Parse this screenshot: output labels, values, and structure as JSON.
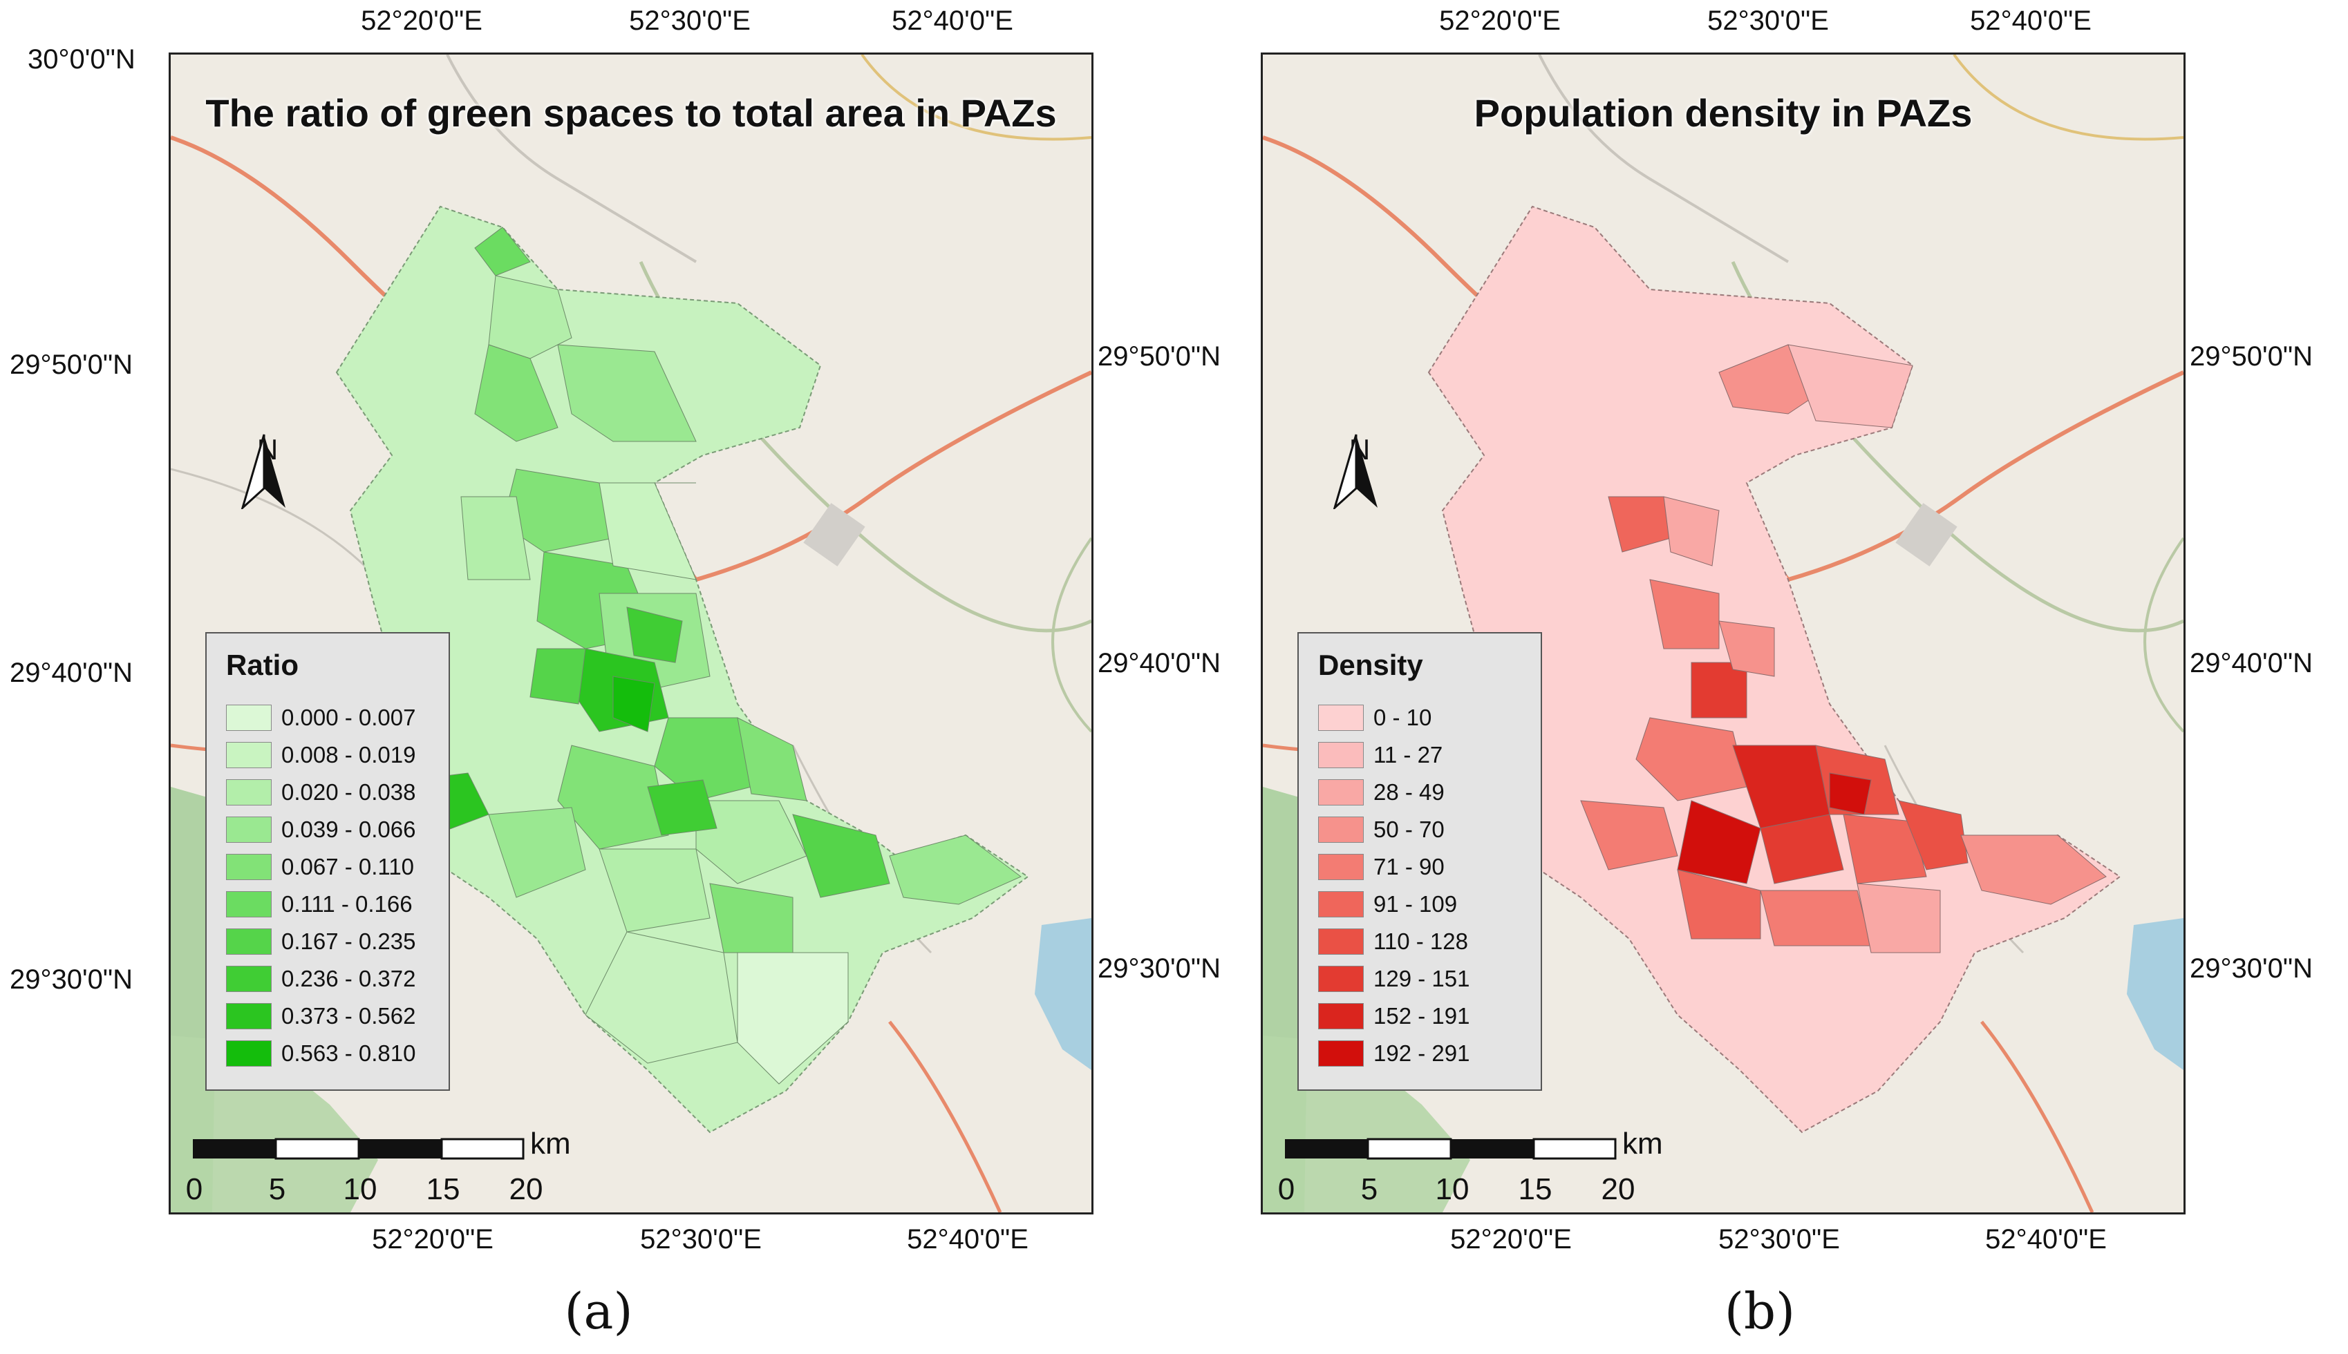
{
  "panels": [
    {
      "title": "The ratio of green spaces to total area in PAZs",
      "caption": "(a)",
      "legend_title": "Ratio",
      "legend_items": [
        {
          "label": "0.000 - 0.007",
          "color": "#dcf8d6"
        },
        {
          "label": "0.008 - 0.019",
          "color": "#c9f4c1"
        },
        {
          "label": "0.020 - 0.038",
          "color": "#b3eeaa"
        },
        {
          "label": "0.039 - 0.066",
          "color": "#9ae891"
        },
        {
          "label": "0.067 - 0.110",
          "color": "#82e277"
        },
        {
          "label": "0.111 - 0.166",
          "color": "#6bdc61"
        },
        {
          "label": "0.167 - 0.235",
          "color": "#55d44a"
        },
        {
          "label": "0.236 - 0.372",
          "color": "#40cd34"
        },
        {
          "label": "0.373 - 0.562",
          "color": "#2bc520"
        },
        {
          "label": "0.563 - 0.810",
          "color": "#14bd0c"
        }
      ],
      "top_lon_labels": [
        "52°20'0\"E",
        "52°30'0\"E",
        "52°40'0\"E"
      ],
      "bottom_lon_labels": [
        "52°20'0\"E",
        "52°30'0\"E",
        "52°40'0\"E"
      ],
      "left_lat_labels": [
        "30°0'0\"N",
        "29°50'0\"N",
        "29°40'0\"N",
        "29°30'0\"N"
      ],
      "right_lat_labels": [
        "29°50'0\"N",
        "29°40'0\"N",
        "29°30'0\"N"
      ]
    },
    {
      "title": "Population density in PAZs",
      "caption": "(b)",
      "legend_title": "Density",
      "legend_items": [
        {
          "label": "0 - 10",
          "color": "#fdd1d1"
        },
        {
          "label": "11 - 27",
          "color": "#fbbcbc"
        },
        {
          "label": "28 - 49",
          "color": "#f9a8a5"
        },
        {
          "label": "50 - 70",
          "color": "#f6928c"
        },
        {
          "label": "71 - 90",
          "color": "#f37c73"
        },
        {
          "label": "91 - 109",
          "color": "#ef665b"
        },
        {
          "label": "110 - 128",
          "color": "#ea5145"
        },
        {
          "label": "129 - 151",
          "color": "#e33b31"
        },
        {
          "label": "152 - 191",
          "color": "#da251e"
        },
        {
          "label": "192 - 291",
          "color": "#d20f0c"
        }
      ],
      "top_lon_labels": [
        "52°20'0\"E",
        "52°30'0\"E",
        "52°40'0\"E"
      ],
      "bottom_lon_labels": [
        "52°20'0\"E",
        "52°30'0\"E",
        "52°40'0\"E"
      ],
      "left_lat_labels": [],
      "right_lat_labels": [
        "29°50'0\"N",
        "29°40'0\"N",
        "29°30'0\"N"
      ]
    }
  ],
  "north_label": "N",
  "scale": {
    "unit": "km",
    "ticks": [
      "0",
      "5",
      "10",
      "15",
      "20"
    ]
  },
  "colors": {
    "base_map": "#efebe3",
    "road_primary": "#e8896a",
    "road_secondary": "#b9c9a5",
    "water": "#a8cfe0",
    "forest": "#a9cf9c"
  }
}
